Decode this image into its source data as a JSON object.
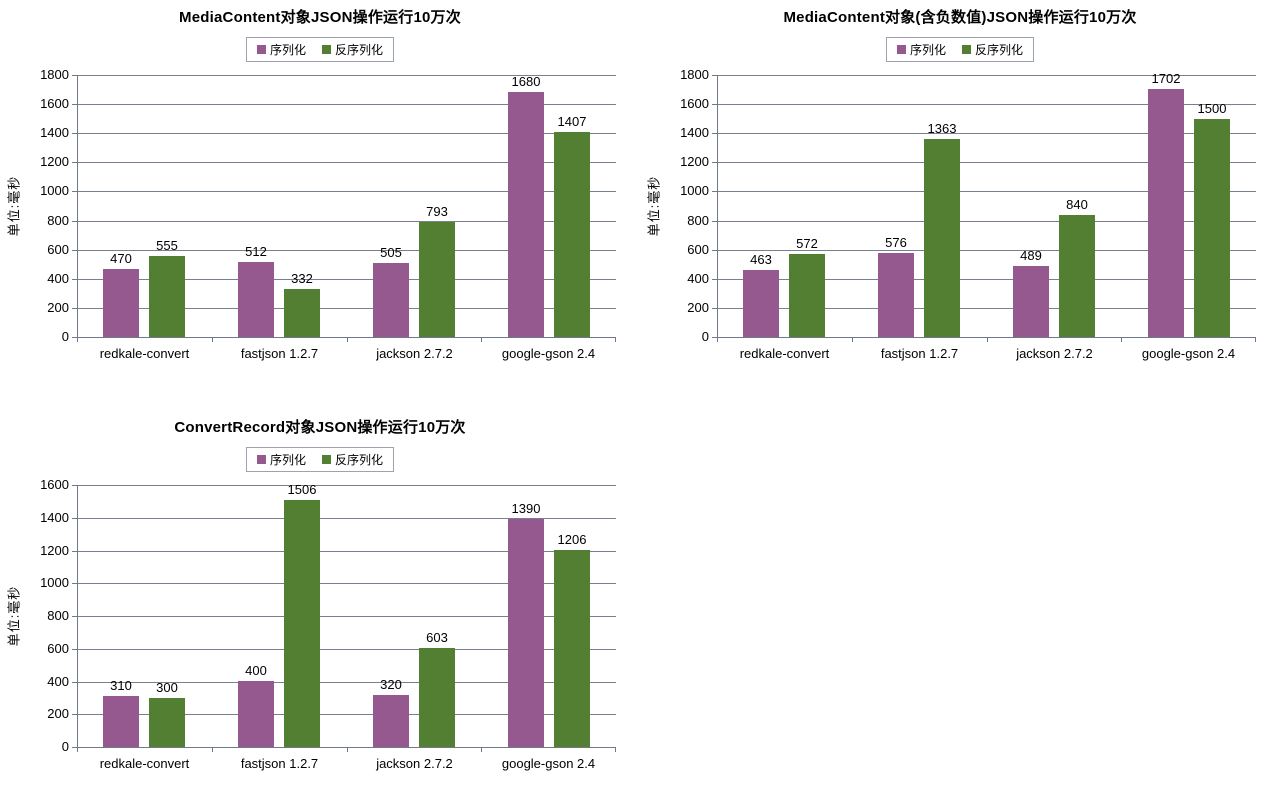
{
  "palette": {
    "serialize": "#96598f",
    "deserialize": "#527f31",
    "gridline": "#76808e",
    "axis": "#6f7987",
    "legend_border": "#9aa3ae",
    "text": "#000000",
    "background": "#ffffff"
  },
  "chart_data": [
    {
      "type": "bar",
      "title": "MediaContent对象JSON操作运行10万次",
      "ylabel": "单位:毫秒",
      "xlabel": "",
      "ylim": [
        0,
        1800
      ],
      "ystep": 200,
      "grid": true,
      "legend_position": "top",
      "categories": [
        "redkale-convert",
        "fastjson 1.2.7",
        "jackson 2.7.2",
        "google-gson 2.4"
      ],
      "series": [
        {
          "name": "序列化",
          "key": "serialize",
          "color": "#96598f",
          "values": [
            470,
            512,
            505,
            1680
          ]
        },
        {
          "name": "反序列化",
          "key": "deserialize",
          "color": "#527f31",
          "values": [
            555,
            332,
            793,
            1407
          ]
        }
      ]
    },
    {
      "type": "bar",
      "title": "MediaContent对象(含负数值)JSON操作运行10万次",
      "ylabel": "单位:毫秒",
      "xlabel": "",
      "ylim": [
        0,
        1800
      ],
      "ystep": 200,
      "grid": true,
      "legend_position": "top",
      "categories": [
        "redkale-convert",
        "fastjson 1.2.7",
        "jackson 2.7.2",
        "google-gson 2.4"
      ],
      "series": [
        {
          "name": "序列化",
          "key": "serialize",
          "color": "#96598f",
          "values": [
            463,
            576,
            489,
            1702
          ]
        },
        {
          "name": "反序列化",
          "key": "deserialize",
          "color": "#527f31",
          "values": [
            572,
            1363,
            840,
            1500
          ]
        }
      ]
    },
    {
      "type": "bar",
      "title": "ConvertRecord对象JSON操作运行10万次",
      "ylabel": "单位:毫秒",
      "xlabel": "",
      "ylim": [
        0,
        1600
      ],
      "ystep": 200,
      "grid": true,
      "legend_position": "top",
      "categories": [
        "redkale-convert",
        "fastjson 1.2.7",
        "jackson 2.7.2",
        "google-gson 2.4"
      ],
      "series": [
        {
          "name": "序列化",
          "key": "serialize",
          "color": "#96598f",
          "values": [
            310,
            400,
            320,
            1390
          ]
        },
        {
          "name": "反序列化",
          "key": "deserialize",
          "color": "#527f31",
          "values": [
            300,
            1506,
            603,
            1206
          ]
        }
      ]
    }
  ]
}
